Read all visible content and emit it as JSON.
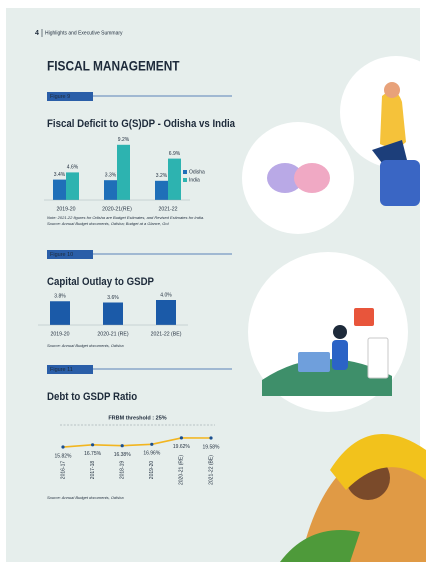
{
  "header": {
    "page_number": "4",
    "section": "Highlights and Executive Summary"
  },
  "heading": "FISCAL MANAGEMENT",
  "chart_data": [
    {
      "type": "bar",
      "figure": "Figure 9",
      "title": "Fiscal Deficit to G(S)DP - Odisha vs India",
      "categories": [
        "2019-20",
        "2020-21(RE)",
        "2021-22"
      ],
      "series": [
        {
          "name": "Odisha",
          "color": "#1f6fb8",
          "values": [
            3.4,
            3.3,
            3.2
          ],
          "value_labels": [
            "3.4%",
            "3.3%",
            "3.2%"
          ]
        },
        {
          "name": "India",
          "color": "#2db3b0",
          "values": [
            4.6,
            9.2,
            6.9
          ],
          "value_labels": [
            "4.6%",
            "9.2%",
            "6.9%"
          ]
        }
      ],
      "notes": [
        "Note: 2021-22 figures for Odisha are Budget Estimates, and Revised Estimates for India.",
        "Source: Annual Budget documents, Odisha; Budget at a Glance, GoI"
      ]
    },
    {
      "type": "bar",
      "figure": "Figure 10",
      "title": "Capital Outlay to GSDP",
      "categories": [
        "2019-20",
        "2020-21 (RE)",
        "2021-22 (BE)"
      ],
      "values": [
        3.8,
        3.6,
        4.0
      ],
      "value_labels": [
        "3.8%",
        "3.6%",
        "4.0%"
      ],
      "color": "#1b5aa8",
      "notes": [
        "Source: Annual Budget documents, Odisha"
      ]
    },
    {
      "type": "line",
      "figure": "Figure 11",
      "title": "Debt to GSDP Ratio",
      "categories": [
        "2016-17",
        "2017-18",
        "2018-19",
        "2019-20",
        "2020-21 (RE)",
        "2021-22 (BE)"
      ],
      "values": [
        15.82,
        16.75,
        16.38,
        16.96,
        19.62,
        19.58
      ],
      "value_labels": [
        "15.82%",
        "16.75%",
        "16.38%",
        "16.96%",
        "19.62%",
        "19.58%"
      ],
      "color": "#f2b520",
      "marker_color": "#1b4f8f",
      "threshold": {
        "value": 25,
        "label": "FRBM threshold : 25%"
      },
      "notes": [
        "Source: Annual Budget documents, Odisha"
      ]
    }
  ]
}
